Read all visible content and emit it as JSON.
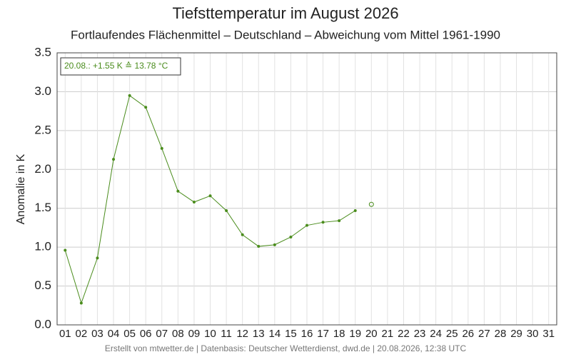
{
  "chart_data": {
    "type": "line",
    "title": "Tiefsttemperatur im August 2026",
    "subtitle": "Fortlaufendes Flächenmittel – Deutschland – Abweichung vom Mittel 1961-1990",
    "y_label": "Anomalie in K",
    "annotation": "20.08.: +1.55 K ≙ 13.78 °C",
    "footer": "Erstellt von mtwetter.de | Datenbasis: Deutscher Wetterdienst, dwd.de | 20.08.2026, 12:38 UTC",
    "categories": [
      "01",
      "02",
      "03",
      "04",
      "05",
      "06",
      "07",
      "08",
      "09",
      "10",
      "11",
      "12",
      "13",
      "14",
      "15",
      "16",
      "17",
      "18",
      "19",
      "20",
      "21",
      "22",
      "23",
      "24",
      "25",
      "26",
      "27",
      "28",
      "29",
      "30",
      "31"
    ],
    "series": [
      {
        "color": "#4a8c1c",
        "values": [
          0.96,
          0.28,
          0.86,
          2.13,
          2.95,
          2.8,
          2.27,
          1.72,
          1.58,
          1.66,
          1.47,
          1.16,
          1.01,
          1.03,
          1.13,
          1.28,
          1.32,
          1.34,
          1.47,
          null,
          null,
          null,
          null,
          null,
          null,
          null,
          null,
          null,
          null,
          null,
          null
        ]
      },
      {
        "color": "#4a8c1c",
        "marker": "open",
        "values": [
          null,
          null,
          null,
          null,
          null,
          null,
          null,
          null,
          null,
          null,
          null,
          null,
          null,
          null,
          null,
          null,
          null,
          null,
          null,
          1.55,
          null,
          null,
          null,
          null,
          null,
          null,
          null,
          null,
          null,
          null,
          null
        ]
      }
    ],
    "ylim": [
      0,
      3.5
    ],
    "yticks": [
      {
        "value": 0,
        "label": "0.0"
      },
      0.5,
      {
        "value": 1,
        "label": "1.0"
      },
      1.5,
      {
        "value": 2,
        "label": "2.0"
      },
      2.5,
      {
        "value": 3,
        "label": "3.0"
      },
      3.5
    ],
    "grid": true
  }
}
